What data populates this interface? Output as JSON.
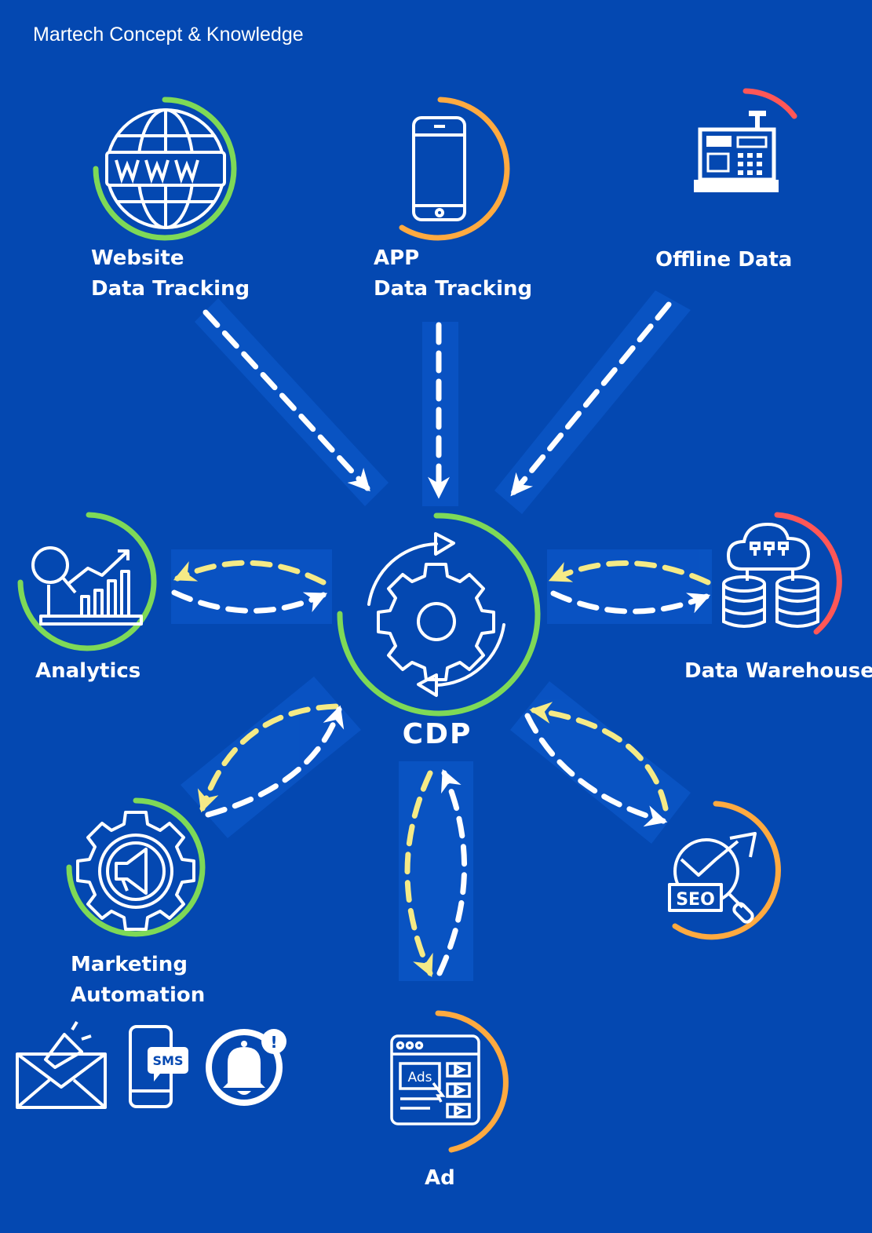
{
  "header": {
    "title": "Martech Concept & Knowledge"
  },
  "center": {
    "label": "CDP"
  },
  "nodes": {
    "website": {
      "line1": "Website",
      "line2": "Data Tracking"
    },
    "app": {
      "line1": "APP",
      "line2": "Data Tracking"
    },
    "offline": {
      "label": "Offline Data"
    },
    "analytics": {
      "label": "Analytics"
    },
    "warehouse": {
      "label": "Data Warehouse"
    },
    "marketing": {
      "line1": "Marketing",
      "line2": "Automation"
    },
    "seo": {
      "label": "",
      "icon_text": "SEO"
    },
    "ad": {
      "label": "Ad",
      "icon_text": "Ads"
    }
  },
  "channels": {
    "sms_text": "SMS",
    "notification_text": "!"
  },
  "icons": {
    "website": "globe-www-icon",
    "app": "smartphone-icon",
    "offline": "cash-register-icon",
    "analytics": "analytics-chart-icon",
    "warehouse": "cloud-database-icon",
    "marketing": "megaphone-gear-icon",
    "seo": "seo-magnifier-icon",
    "ad": "ad-browser-icon",
    "cdp": "gear-cycle-icon",
    "email": "email-megaphone-icon",
    "sms": "sms-phone-icon",
    "bell": "notification-bell-icon"
  },
  "colors": {
    "background": "#0448b1",
    "green": "#7ed957",
    "orange": "#ffaa40",
    "red": "#ff5757",
    "yellow": "#f5ea86",
    "white": "#ffffff"
  }
}
